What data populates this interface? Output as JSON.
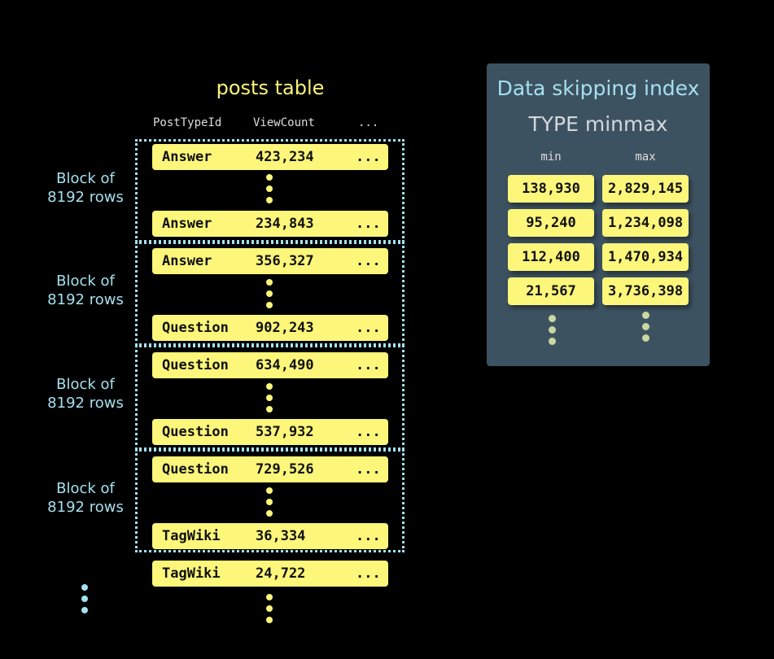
{
  "table": {
    "title": "posts table",
    "columns": [
      "PostTypeId",
      "ViewCount",
      "..."
    ],
    "rows": [
      {
        "type": "Answer",
        "views": "423,234",
        "more": "..."
      },
      {
        "type": "Answer",
        "views": "234,843",
        "more": "..."
      },
      {
        "type": "Answer",
        "views": "356,327",
        "more": "..."
      },
      {
        "type": "Question",
        "views": "902,243",
        "more": "..."
      },
      {
        "type": "Question",
        "views": "634,490",
        "more": "..."
      },
      {
        "type": "Question",
        "views": "537,932",
        "more": "..."
      },
      {
        "type": "Question",
        "views": "729,526",
        "more": "..."
      },
      {
        "type": "TagWiki",
        "views": "36,334",
        "more": "..."
      },
      {
        "type": "TagWiki",
        "views": "24,722",
        "more": "..."
      }
    ],
    "block_labels": [
      "Block of\n8192 rows",
      "Block of\n8192 rows",
      "Block of\n8192 rows",
      "Block of\n8192 rows"
    ]
  },
  "index": {
    "title": "Data skipping index",
    "subtitle": "TYPE minmax",
    "min_label": "min",
    "max_label": "max",
    "entries": [
      {
        "min": "138,930",
        "max": "2,829,145"
      },
      {
        "min": "95,240",
        "max": "1,234,098"
      },
      {
        "min": "112,400",
        "max": "1,470,934"
      },
      {
        "min": "21,567",
        "max": "3,736,398"
      }
    ]
  },
  "colors": {
    "row": "#fcf67a",
    "block_border": "#a5e0ee",
    "panel": "#3d5261",
    "title": "#f8f27a"
  }
}
